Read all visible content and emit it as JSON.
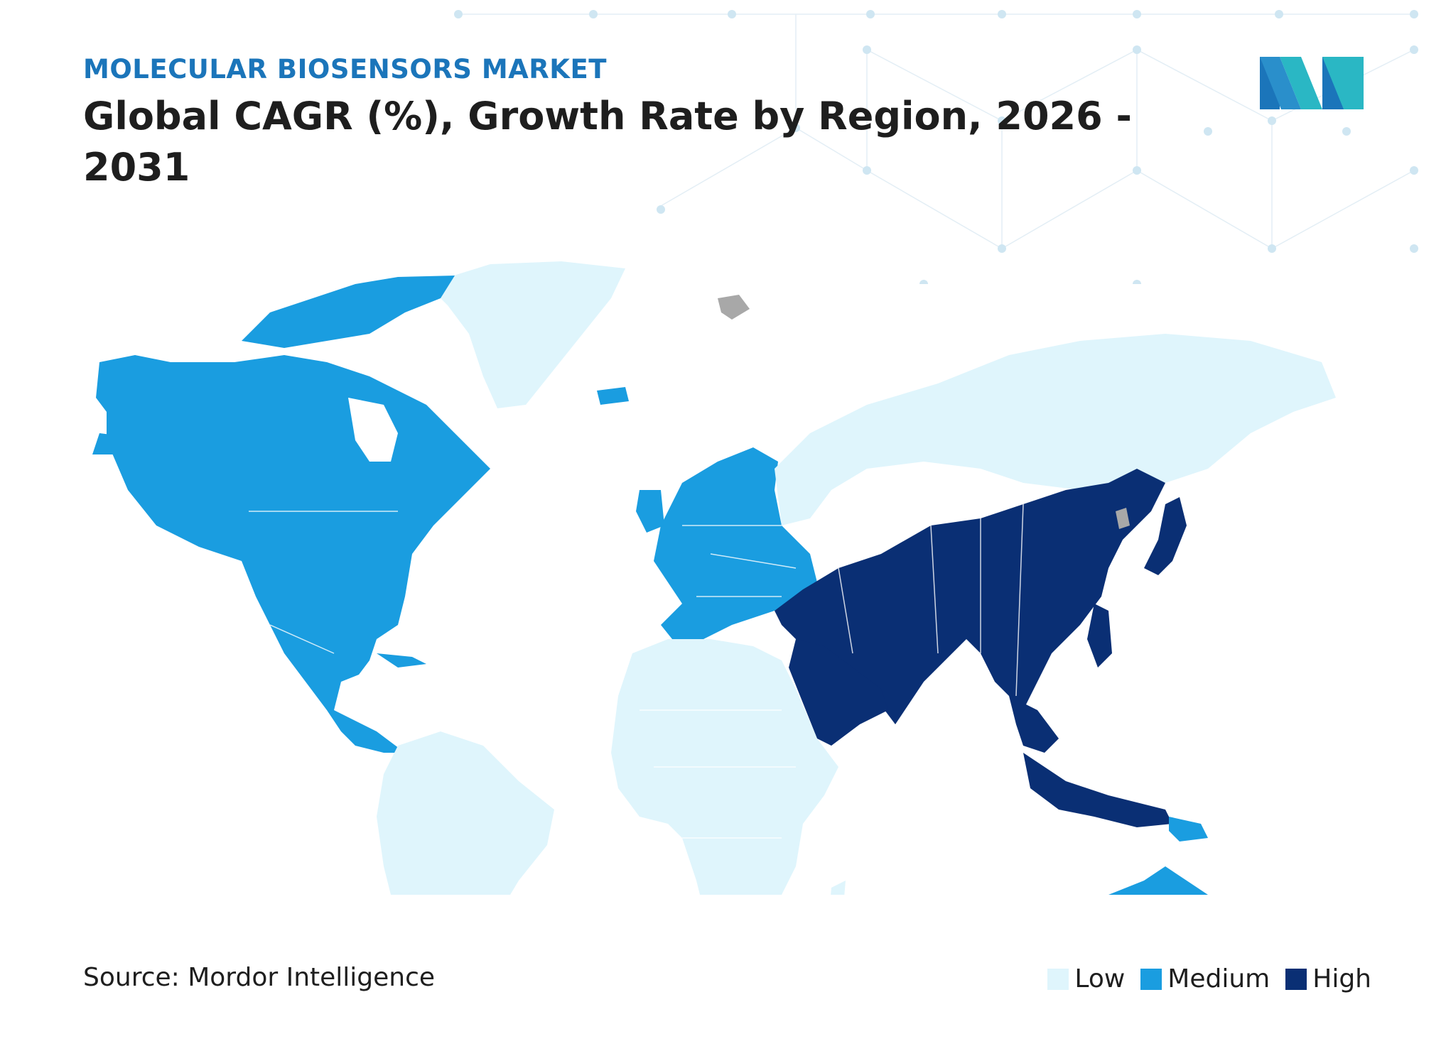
{
  "header": {
    "kicker": "MOLECULAR BIOSENSORS MARKET",
    "title": "Global  CAGR (%), Growth Rate by Region, 2026 - 2031"
  },
  "logo": {
    "icon": "mordor-intelligence-logo-icon",
    "colors": [
      "#1b75ba",
      "#2ab7c4"
    ]
  },
  "source": "Source: Mordor Intelligence",
  "legend": [
    {
      "label": "Low",
      "color": "#dff5fc"
    },
    {
      "label": "Medium",
      "color": "#1a9de0"
    },
    {
      "label": "High",
      "color": "#0a2f74"
    }
  ],
  "regions": [
    {
      "name": "North America",
      "level": "Medium"
    },
    {
      "name": "Greenland",
      "level": "Low"
    },
    {
      "name": "South America",
      "level": "Low"
    },
    {
      "name": "Europe",
      "level": "Medium"
    },
    {
      "name": "Russia",
      "level": "Low"
    },
    {
      "name": "Africa",
      "level": "Low"
    },
    {
      "name": "Middle East & Asia",
      "level": "High"
    },
    {
      "name": "Australia & New Zealand",
      "level": "Medium"
    }
  ],
  "colors": {
    "no_data": "#a8a8a8",
    "border": "#ffffff"
  }
}
